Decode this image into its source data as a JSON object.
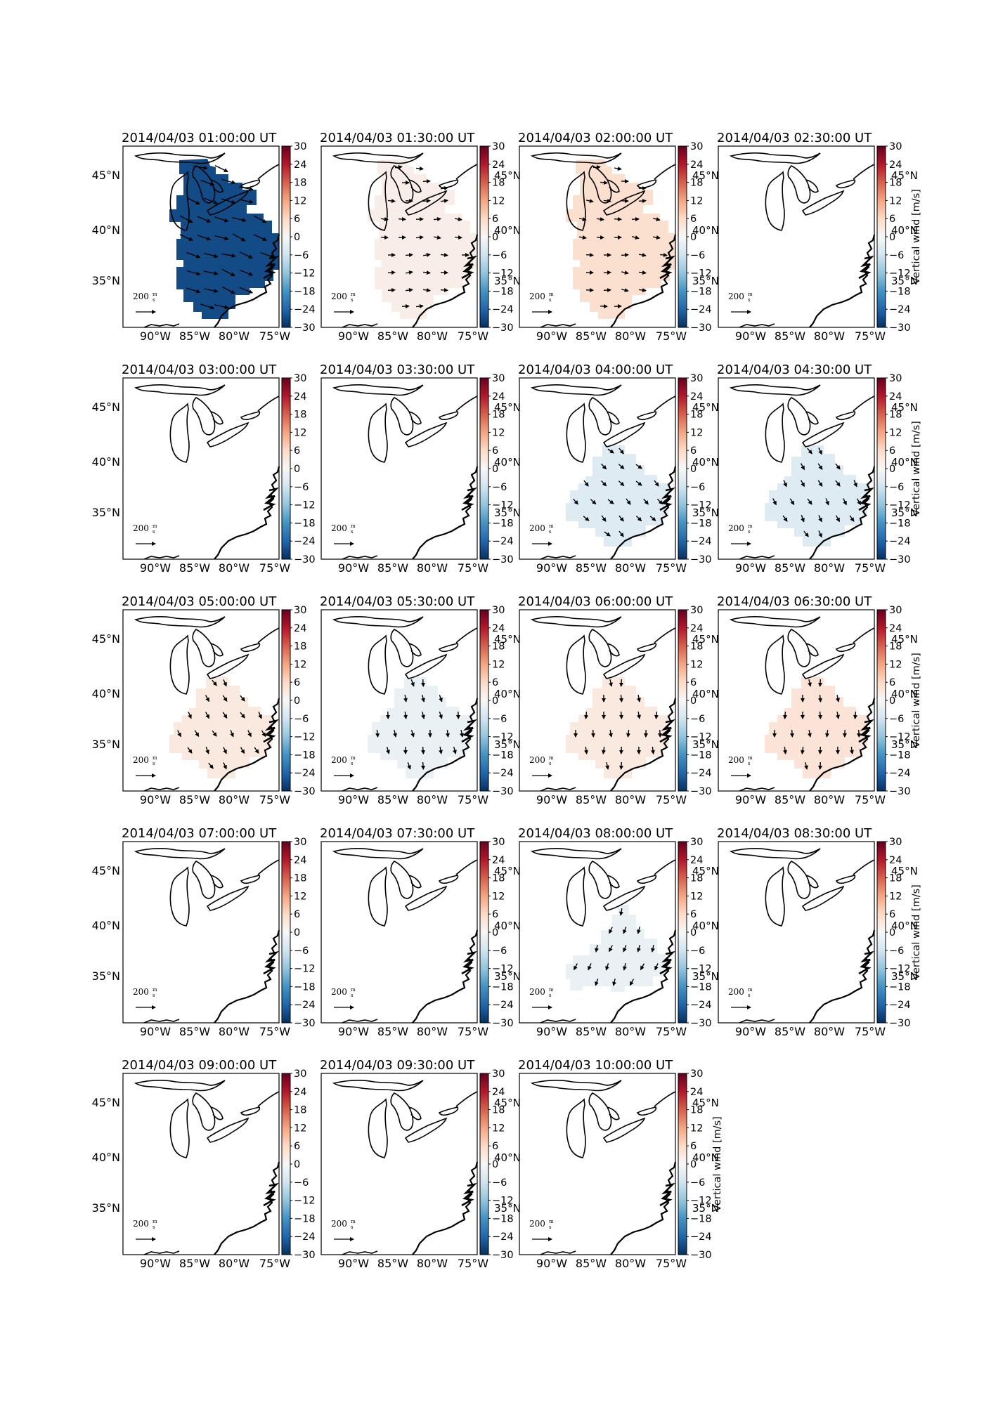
{
  "figure": {
    "colorbar_label": "Vertical wind [m/s]",
    "colorbar_ticks": [
      "30",
      "24",
      "18",
      "12",
      "6",
      "0",
      "−6",
      "−12",
      "−18",
      "−24",
      "−30"
    ],
    "colorbar_range": [
      -30,
      30
    ],
    "colormap": "RdBu_r",
    "colormap_stops": [
      "#053061",
      "#2166ac",
      "#4393c3",
      "#92c5de",
      "#d1e5f0",
      "#f7f7f7",
      "#fddbc7",
      "#f4a582",
      "#d6604d",
      "#b2182b",
      "#67001f"
    ],
    "lat_labels": [
      "45°N",
      "40°N",
      "35°N"
    ],
    "lon_labels": [
      "90°W",
      "85°W",
      "80°W",
      "75°W"
    ],
    "scale_label": "200",
    "scale_unit_num": "m",
    "scale_unit_den": "s",
    "arrow_color": "#000000"
  },
  "chart_data": {
    "type": "map",
    "quantity": "Vertical wind [m/s]",
    "panels": [
      {
        "title": "2014/04/03 01:00:00 UT",
        "vertical_wind": -27,
        "region": "large",
        "wind_dir_deg": 110
      },
      {
        "title": "2014/04/03 01:30:00 UT",
        "vertical_wind": 2,
        "region": "large",
        "wind_dir_deg": 90
      },
      {
        "title": "2014/04/03 02:00:00 UT",
        "vertical_wind": 5,
        "region": "large",
        "wind_dir_deg": 95
      },
      {
        "title": "2014/04/03 02:30:00 UT",
        "vertical_wind": null,
        "region": "none"
      },
      {
        "title": "2014/04/03 03:00:00 UT",
        "vertical_wind": null,
        "region": "none"
      },
      {
        "title": "2014/04/03 03:30:00 UT",
        "vertical_wind": null,
        "region": "none"
      },
      {
        "title": "2014/04/03 04:00:00 UT",
        "vertical_wind": -4,
        "region": "south",
        "wind_dir_deg": 135
      },
      {
        "title": "2014/04/03 04:30:00 UT",
        "vertical_wind": -4,
        "region": "south",
        "wind_dir_deg": 150
      },
      {
        "title": "2014/04/03 05:00:00 UT",
        "vertical_wind": 3,
        "region": "south",
        "wind_dir_deg": 150
      },
      {
        "title": "2014/04/03 05:30:00 UT",
        "vertical_wind": -2,
        "region": "south",
        "wind_dir_deg": 170
      },
      {
        "title": "2014/04/03 06:00:00 UT",
        "vertical_wind": 3,
        "region": "south",
        "wind_dir_deg": 178
      },
      {
        "title": "2014/04/03 06:30:00 UT",
        "vertical_wind": 4,
        "region": "south",
        "wind_dir_deg": 178
      },
      {
        "title": "2014/04/03 07:00:00 UT",
        "vertical_wind": null,
        "region": "none"
      },
      {
        "title": "2014/04/03 07:30:00 UT",
        "vertical_wind": null,
        "region": "none"
      },
      {
        "title": "2014/04/03 08:00:00 UT",
        "vertical_wind": -2,
        "region": "south-small",
        "wind_dir_deg": 200
      },
      {
        "title": "2014/04/03 08:30:00 UT",
        "vertical_wind": null,
        "region": "none"
      },
      {
        "title": "2014/04/03 09:00:00 UT",
        "vertical_wind": null,
        "region": "none"
      },
      {
        "title": "2014/04/03 09:30:00 UT",
        "vertical_wind": null,
        "region": "none"
      },
      {
        "title": "2014/04/03 10:00:00 UT",
        "vertical_wind": null,
        "region": "none"
      }
    ]
  }
}
